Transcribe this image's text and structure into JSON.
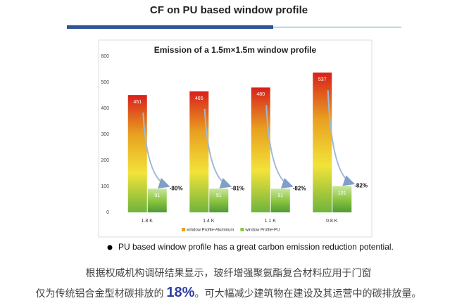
{
  "page": {
    "title": "CF on PU based window profile",
    "bullet": "PU based window profile has a great carbon emission reduction potential.",
    "line1": "根据权威机构调研结果显示，玻纤增强聚氨酯复合材料应用于门窗",
    "line2_before": "仅为传统铝合金型材碳排放的",
    "line2_highlight": "18%",
    "line2_after": "。可大幅减少建筑物在建设及其运营中的碳排放量。"
  },
  "chart_data": {
    "type": "bar",
    "title": "Emission of a 1.5m×1.5m window profile",
    "categories": [
      "1.8 K",
      "1.4 K",
      "1.1 K",
      "0.8 K"
    ],
    "series": [
      {
        "name": "window Profile-Aluminum",
        "color": "#e8a020",
        "values": [
          451,
          465,
          480,
          537
        ]
      },
      {
        "name": "window Profile-PU",
        "color": "#8dc63f",
        "values": [
          91,
          91,
          91,
          101
        ]
      }
    ],
    "annotations": [
      "-80%",
      "-81%",
      "-82%",
      "-82%"
    ],
    "ylim": [
      0,
      600
    ],
    "yticks": [
      0,
      100,
      200,
      300,
      400,
      500,
      600
    ],
    "grid": false
  }
}
